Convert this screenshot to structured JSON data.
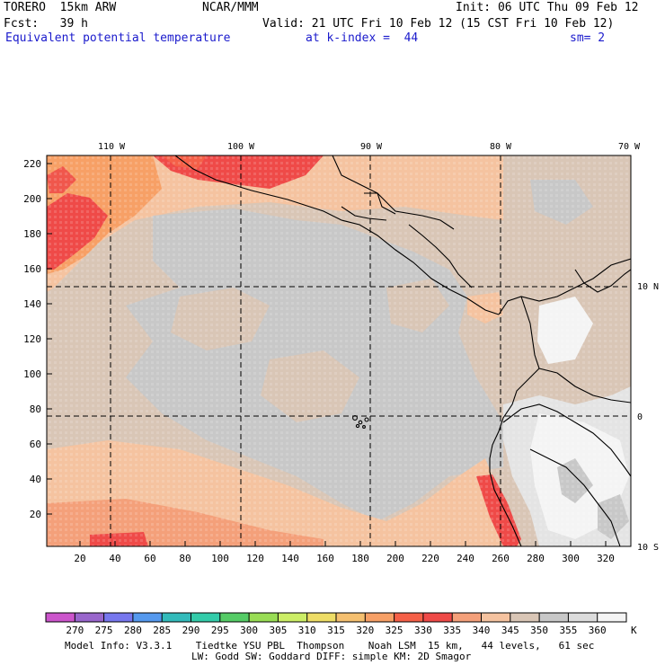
{
  "header": {
    "model": "TORERO  15km ARW",
    "org": "NCAR/MMM",
    "init": "Init: 06 UTC Thu 09 Feb 12",
    "fcst": "Fcst:   39 h",
    "valid": "Valid: 21 UTC Fri 10 Feb 12 (15 CST Fri 10 Feb 12)",
    "field": "Equivalent potential temperature",
    "level": "at k-index =  44",
    "smooth": "sm= 2"
  },
  "map": {
    "lon_labels": [
      "110 W",
      "100 W",
      "90 W",
      "80 W",
      "70 W"
    ],
    "lat_labels": [
      "10 N",
      "0",
      "10 S"
    ],
    "y_ticks": [
      "220",
      "200",
      "180",
      "160",
      "140",
      "120",
      "100",
      "80",
      "60",
      "40",
      "20"
    ],
    "x_ticks": [
      "20",
      "40",
      "60",
      "80",
      "100",
      "120",
      "140",
      "160",
      "180",
      "200",
      "220",
      "240",
      "260",
      "280",
      "300",
      "320"
    ]
  },
  "colorbar": {
    "unit": "K",
    "labels": [
      "270",
      "275",
      "280",
      "285",
      "290",
      "295",
      "300",
      "305",
      "310",
      "315",
      "320",
      "325",
      "330",
      "335",
      "340",
      "345",
      "350",
      "355",
      "360"
    ],
    "colors": [
      "#cc55cc",
      "#9966cc",
      "#7777ee",
      "#5599ee",
      "#33bbbb",
      "#33ccaa",
      "#55cc66",
      "#99dd55",
      "#ccee66",
      "#eedd66",
      "#f5c070",
      "#f7a066",
      "#f56048",
      "#ef4a48",
      "#f4a07a",
      "#f5c3a0",
      "#d9c6b6",
      "#c8c8c8",
      "#dcdcdc",
      "#f4f4f4"
    ]
  },
  "footer": {
    "line1": "Model Info: V3.3.1    Tiedtke YSU PBL  Thompson    Noah LSM  15 km,   44 levels,   61 sec",
    "line2": "LW: Godd SW: Goddard DIFF: simple KM: 2D Smagor"
  }
}
